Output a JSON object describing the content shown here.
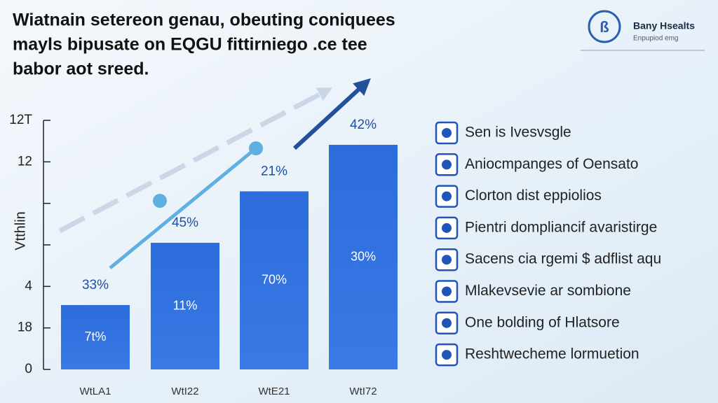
{
  "chart_data": {
    "type": "bar",
    "title_lines": [
      "Wiatnain setereon genau, obeuting coniquees",
      "mayls bipusate on EQGU fittirniego .ce tee",
      "babor aot sreed."
    ],
    "logo": {
      "name": "Bany Hsealts",
      "tagline": "Enpupiod emg"
    },
    "y_label": "Vtthlin",
    "categories": [
      "WtLA1",
      "WtI22",
      "WtE21",
      "WtI72"
    ],
    "values": [
      1.55,
      3.05,
      4.29,
      5.41
    ],
    "color": "#2f6fdc",
    "top_labels": [
      "33%",
      "45%",
      "21%",
      "42%"
    ],
    "inner_labels": [
      "7t%",
      "11%",
      "70%",
      "30%"
    ],
    "ylim": [
      0,
      6
    ],
    "yticks": [
      0,
      {
        "value": 1,
        "label": "18"
      },
      {
        "value": 2,
        "label": "4"
      },
      {
        "value": 3,
        "label": null
      },
      {
        "value": 4,
        "label": null
      },
      {
        "value": 5,
        "label": "12"
      },
      {
        "value": 6,
        "label": "12T"
      }
    ],
    "legend_items": [
      "Sen is Ivesvsgle",
      "Aniocmpanges of Oensato",
      "Clorton dist eppiolios",
      "Pientri dompliancif avaristirge",
      "Sacens cia rgemi $ adflist aqu",
      "Mlakevsevie ar sombione",
      "One bolding of Hlatsore",
      "Reshtwecheme lormuetion"
    ]
  }
}
